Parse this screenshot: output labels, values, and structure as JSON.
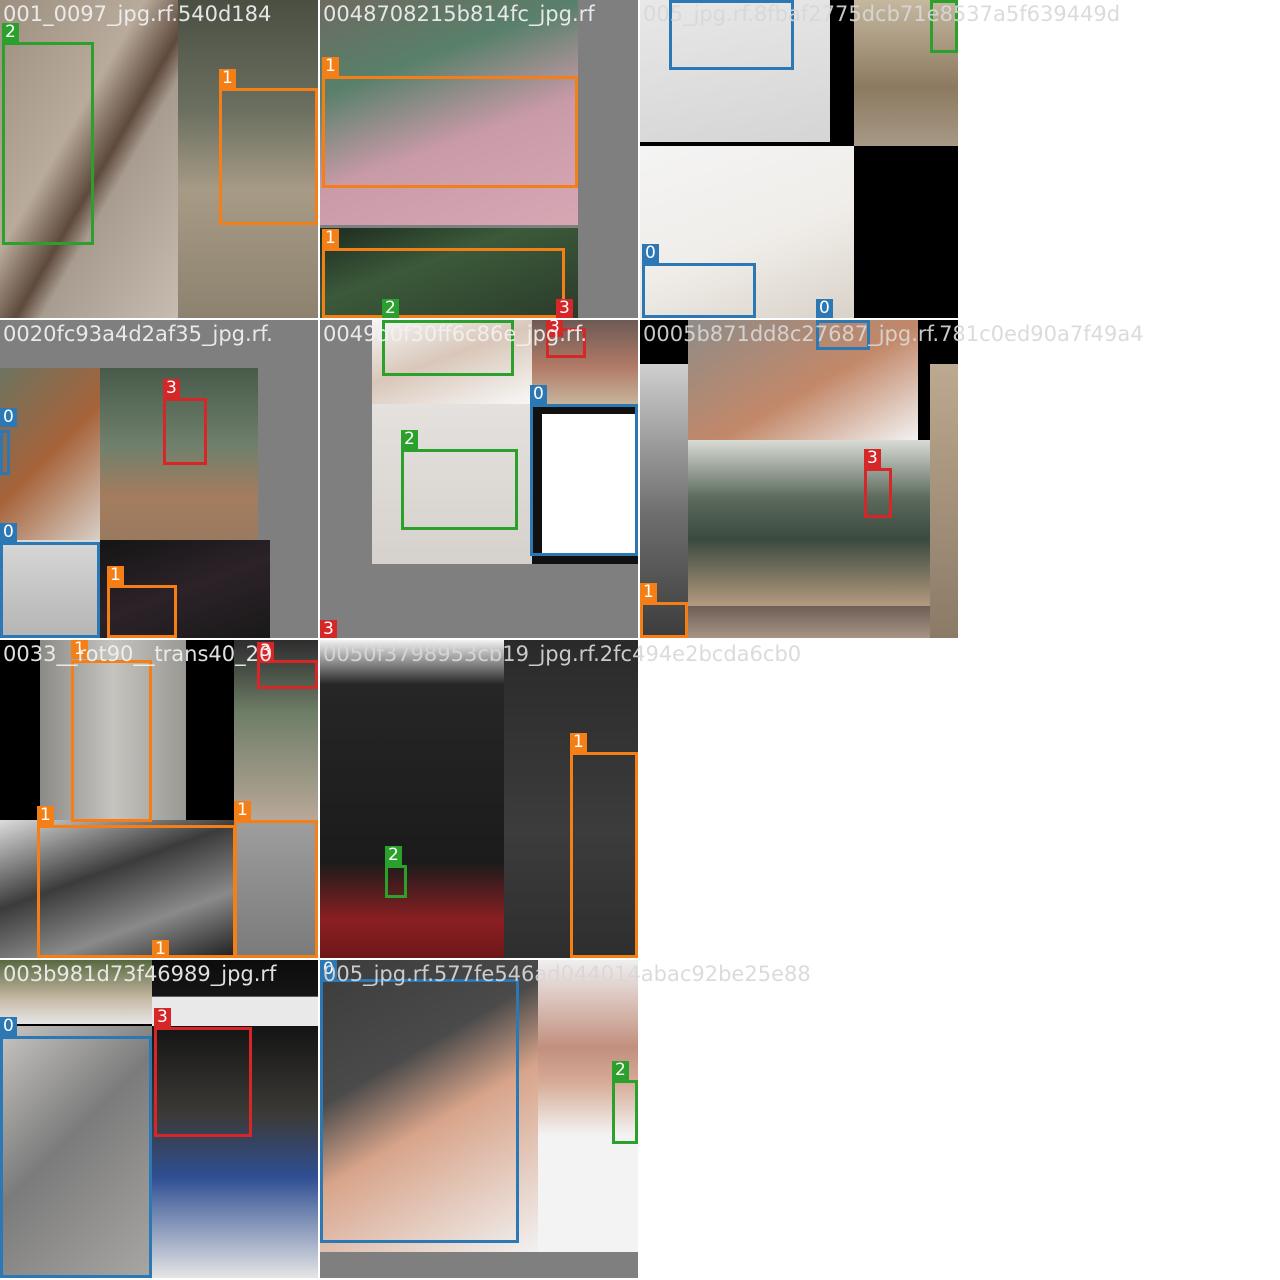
{
  "mosaic": {
    "filenames": [
      "001_0097_jpg.rf.540d184",
      "0048708215b814fc_jpg.rf",
      "005_jpg.rf.8fbaf2775dcb71e8537a5f639449d",
      "0020fc93a4d2af35_jpg.rf.",
      "0049d0f30ff6c86e_jpg.rf.",
      "0005b871dd8c27687_jpg.rf.781c0ed90a7f49a4",
      "0033__rot90__trans40_20",
      "0050f3798953cb19_jpg.rf.2fc494e2bcda6cb0",
      "003b981d73f46989_jpg.rf",
      "005_jpg.rf.577fe546ad044014abac92be25e88"
    ],
    "class_labels": {
      "c0": "0",
      "c1": "1",
      "c2": "2",
      "c3": "3"
    },
    "class_colors": {
      "c0": "#2b78b4",
      "c1": "#f57f17",
      "c2": "#2ca02c",
      "c3": "#d62728"
    }
  }
}
